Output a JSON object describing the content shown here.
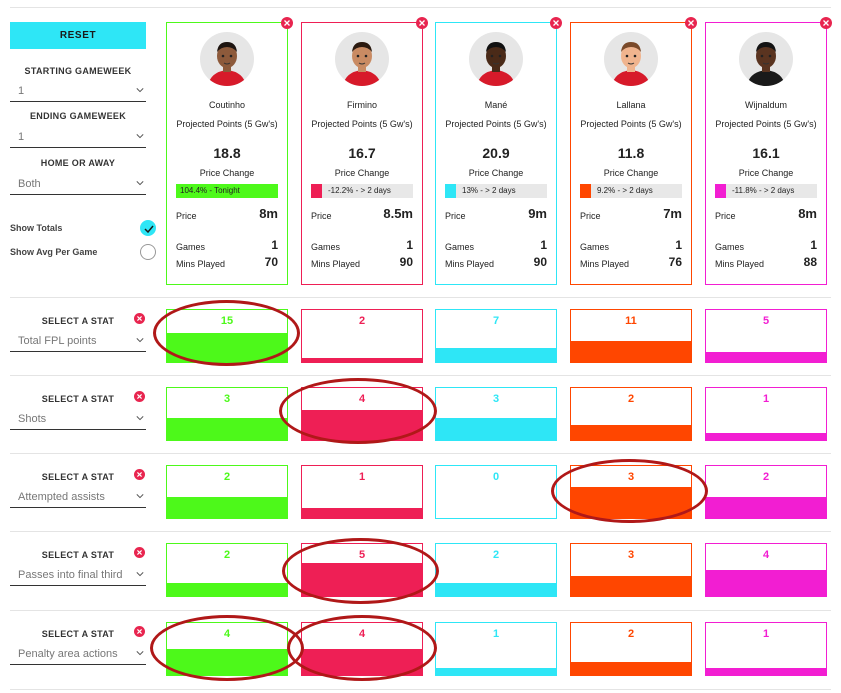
{
  "sidebar": {
    "reset_label": "RESET",
    "starting_gameweek_label": "STARTING GAMEWEEK",
    "starting_gameweek_value": "1",
    "ending_gameweek_label": "ENDING GAMEWEEK",
    "ending_gameweek_value": "1",
    "home_away_label": "HOME OR AWAY",
    "home_away_value": "Both",
    "show_totals_label": "Show Totals",
    "show_totals_checked": true,
    "show_avg_label": "Show Avg Per Game",
    "show_avg_checked": false
  },
  "colors": {
    "green": "#4df91a",
    "red": "#ee1f55",
    "cyan": "#2ee6f6",
    "orange": "#ff4600",
    "magenta": "#f21ed2",
    "close_red": "#e8254f",
    "annotation_red": "#b01818"
  },
  "players": [
    {
      "name": "Coutinho",
      "color": "#4df91a",
      "proj_label": "Projected Points (5 Gw's)",
      "proj_value": "18.8",
      "price_change_label": "Price Change",
      "price_change_text": "104.4% - Tonight",
      "price_change_fill": 1.0,
      "price_label": "Price",
      "price_value": "8m",
      "games_label": "Games",
      "games_value": "1",
      "mins_label": "Mins Played",
      "mins_value": "70",
      "skin": "#8d5a3b",
      "hair": "#1d1410",
      "shirt": "#d71a2a"
    },
    {
      "name": "Firmino",
      "color": "#ee1f55",
      "proj_label": "Projected Points (5 Gw's)",
      "proj_value": "16.7",
      "price_change_label": "Price Change",
      "price_change_text": "-12.2% - > 2 days",
      "price_change_fill": 0.12,
      "price_label": "Price",
      "price_value": "8.5m",
      "games_label": "Games",
      "games_value": "1",
      "mins_label": "Mins Played",
      "mins_value": "90",
      "skin": "#c98b63",
      "hair": "#2b1a10",
      "shirt": "#d71a2a"
    },
    {
      "name": "Mané",
      "color": "#2ee6f6",
      "proj_label": "Projected Points (5 Gw's)",
      "proj_value": "20.9",
      "price_change_label": "Price Change",
      "price_change_text": "13% - > 2 days",
      "price_change_fill": 0.13,
      "price_label": "Price",
      "price_value": "9m",
      "games_label": "Games",
      "games_value": "1",
      "mins_label": "Mins Played",
      "mins_value": "90",
      "skin": "#4a2a18",
      "hair": "#111111",
      "shirt": "#d71a2a"
    },
    {
      "name": "Lallana",
      "color": "#ff4600",
      "proj_label": "Projected Points (5 Gw's)",
      "proj_value": "11.8",
      "price_change_label": "Price Change",
      "price_change_text": "9.2% - > 2 days",
      "price_change_fill": 0.09,
      "price_label": "Price",
      "price_value": "7m",
      "games_label": "Games",
      "games_value": "1",
      "mins_label": "Mins Played",
      "mins_value": "76",
      "skin": "#f0b48e",
      "hair": "#7a4a2a",
      "shirt": "#d71a2a"
    },
    {
      "name": "Wijnaldum",
      "color": "#f21ed2",
      "proj_label": "Projected Points (5 Gw's)",
      "proj_value": "16.1",
      "price_change_label": "Price Change",
      "price_change_text": "-11.8% - > 2 days",
      "price_change_fill": 0.12,
      "price_label": "Price",
      "price_value": "8m",
      "games_label": "Games",
      "games_value": "1",
      "mins_label": "Mins Played",
      "mins_value": "88",
      "skin": "#5a3420",
      "hair": "#141414",
      "shirt": "#1a1a1a"
    }
  ],
  "stats": [
    {
      "select_label": "SELECT A STAT",
      "stat_name": "Total FPL points",
      "values": [
        "15",
        "2",
        "7",
        "11",
        "5"
      ],
      "fill": [
        0.55,
        0.07,
        0.26,
        0.41,
        0.19
      ]
    },
    {
      "select_label": "SELECT A STAT",
      "stat_name": "Shots",
      "values": [
        "3",
        "4",
        "3",
        "2",
        "1"
      ],
      "fill": [
        0.43,
        0.57,
        0.43,
        0.29,
        0.14
      ]
    },
    {
      "select_label": "SELECT A STAT",
      "stat_name": "Attempted assists",
      "values": [
        "2",
        "1",
        "0",
        "3",
        "2"
      ],
      "fill": [
        0.4,
        0.2,
        0.0,
        0.6,
        0.4
      ]
    },
    {
      "select_label": "SELECT A STAT",
      "stat_name": "Passes into final third",
      "values": [
        "2",
        "5",
        "2",
        "3",
        "4"
      ],
      "fill": [
        0.25,
        0.63,
        0.25,
        0.38,
        0.5
      ]
    },
    {
      "select_label": "SELECT A STAT",
      "stat_name": "Penalty area actions",
      "values": [
        "4",
        "4",
        "1",
        "2",
        "1"
      ],
      "fill": [
        0.5,
        0.5,
        0.125,
        0.25,
        0.125
      ]
    }
  ]
}
